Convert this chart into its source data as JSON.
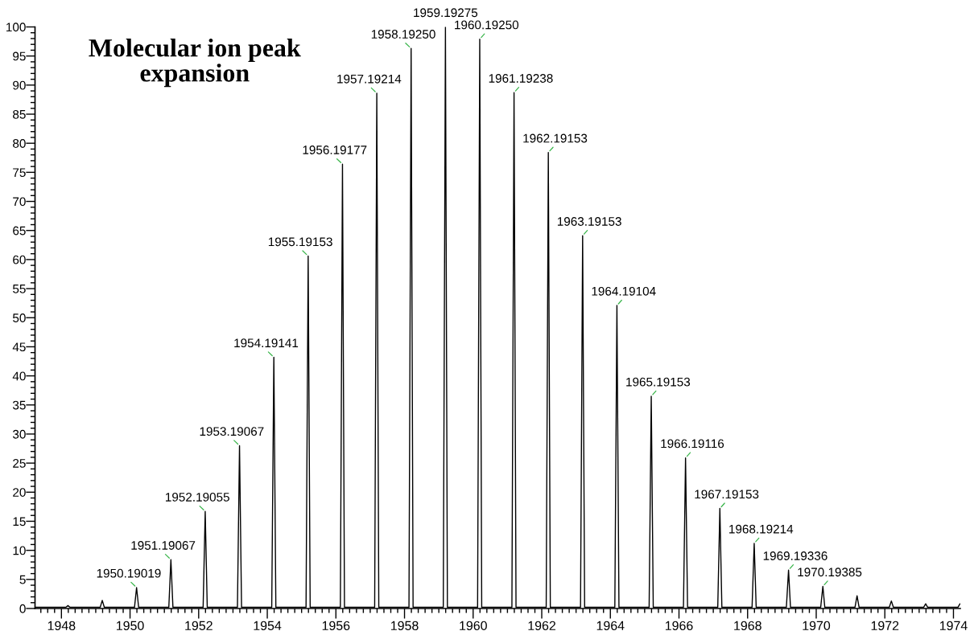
{
  "chart_data": {
    "type": "line",
    "title": "Molecular ion peak\nexpansion",
    "xlim": [
      1947.23,
      1974.2
    ],
    "ylim": [
      0,
      100
    ],
    "xticks": [
      {
        "value": 1947.4,
        "label": null
      },
      {
        "value": 1947.6,
        "label": null
      },
      {
        "value": 1947.8,
        "label": null
      },
      1948,
      {
        "value": 1948.2,
        "label": null
      },
      {
        "value": 1948.4,
        "label": null
      },
      {
        "value": 1948.6,
        "label": null
      },
      {
        "value": 1948.8,
        "label": null
      },
      {
        "value": 1949,
        "label": null
      },
      {
        "value": 1949.2,
        "label": null
      },
      {
        "value": 1949.4,
        "label": null
      },
      {
        "value": 1949.6,
        "label": null
      },
      {
        "value": 1949.8,
        "label": null
      },
      1950,
      {
        "value": 1950.2,
        "label": null
      },
      {
        "value": 1950.4,
        "label": null
      },
      {
        "value": 1950.6,
        "label": null
      },
      {
        "value": 1950.8,
        "label": null
      },
      {
        "value": 1951,
        "label": null
      },
      {
        "value": 1951.2,
        "label": null
      },
      {
        "value": 1951.4,
        "label": null
      },
      {
        "value": 1951.6,
        "label": null
      },
      {
        "value": 1951.8,
        "label": null
      },
      1952,
      {
        "value": 1952.2,
        "label": null
      },
      {
        "value": 1952.4,
        "label": null
      },
      {
        "value": 1952.6,
        "label": null
      },
      {
        "value": 1952.8,
        "label": null
      },
      {
        "value": 1953,
        "label": null
      },
      {
        "value": 1953.2,
        "label": null
      },
      {
        "value": 1953.4,
        "label": null
      },
      {
        "value": 1953.6,
        "label": null
      },
      {
        "value": 1953.8,
        "label": null
      },
      1954,
      {
        "value": 1954.2,
        "label": null
      },
      {
        "value": 1954.4,
        "label": null
      },
      {
        "value": 1954.6,
        "label": null
      },
      {
        "value": 1954.8,
        "label": null
      },
      {
        "value": 1955,
        "label": null
      },
      {
        "value": 1955.2,
        "label": null
      },
      {
        "value": 1955.4,
        "label": null
      },
      {
        "value": 1955.6,
        "label": null
      },
      {
        "value": 1955.8,
        "label": null
      },
      1956,
      {
        "value": 1956.2,
        "label": null
      },
      {
        "value": 1956.4,
        "label": null
      },
      {
        "value": 1956.6,
        "label": null
      },
      {
        "value": 1956.8,
        "label": null
      },
      {
        "value": 1957,
        "label": null
      },
      {
        "value": 1957.2,
        "label": null
      },
      {
        "value": 1957.4,
        "label": null
      },
      {
        "value": 1957.6,
        "label": null
      },
      {
        "value": 1957.8,
        "label": null
      },
      1958,
      {
        "value": 1958.2,
        "label": null
      },
      {
        "value": 1958.4,
        "label": null
      },
      {
        "value": 1958.6,
        "label": null
      },
      {
        "value": 1958.8,
        "label": null
      },
      {
        "value": 1959,
        "label": null
      },
      {
        "value": 1959.2,
        "label": null
      },
      {
        "value": 1959.4,
        "label": null
      },
      {
        "value": 1959.6,
        "label": null
      },
      {
        "value": 1959.8,
        "label": null
      },
      1960,
      {
        "value": 1960.2,
        "label": null
      },
      {
        "value": 1960.4,
        "label": null
      },
      {
        "value": 1960.6,
        "label": null
      },
      {
        "value": 1960.8,
        "label": null
      },
      {
        "value": 1961,
        "label": null
      },
      {
        "value": 1961.2,
        "label": null
      },
      {
        "value": 1961.4,
        "label": null
      },
      {
        "value": 1961.6,
        "label": null
      },
      {
        "value": 1961.8,
        "label": null
      },
      1962,
      {
        "value": 1962.2,
        "label": null
      },
      {
        "value": 1962.4,
        "label": null
      },
      {
        "value": 1962.6,
        "label": null
      },
      {
        "value": 1962.8,
        "label": null
      },
      {
        "value": 1963,
        "label": null
      },
      {
        "value": 1963.2,
        "label": null
      },
      {
        "value": 1963.4,
        "label": null
      },
      {
        "value": 1963.6,
        "label": null
      },
      {
        "value": 1963.8,
        "label": null
      },
      1964,
      {
        "value": 1964.2,
        "label": null
      },
      {
        "value": 1964.4,
        "label": null
      },
      {
        "value": 1964.6,
        "label": null
      },
      {
        "value": 1964.8,
        "label": null
      },
      {
        "value": 1965,
        "label": null
      },
      {
        "value": 1965.2,
        "label": null
      },
      {
        "value": 1965.4,
        "label": null
      },
      {
        "value": 1965.6,
        "label": null
      },
      {
        "value": 1965.8,
        "label": null
      },
      1966,
      {
        "value": 1966.2,
        "label": null
      },
      {
        "value": 1966.4,
        "label": null
      },
      {
        "value": 1966.6,
        "label": null
      },
      {
        "value": 1966.8,
        "label": null
      },
      {
        "value": 1967,
        "label": null
      },
      {
        "value": 1967.2,
        "label": null
      },
      {
        "value": 1967.4,
        "label": null
      },
      {
        "value": 1967.6,
        "label": null
      },
      {
        "value": 1967.8,
        "label": null
      },
      1968,
      {
        "value": 1968.2,
        "label": null
      },
      {
        "value": 1968.4,
        "label": null
      },
      {
        "value": 1968.6,
        "label": null
      },
      {
        "value": 1968.8,
        "label": null
      },
      {
        "value": 1969,
        "label": null
      },
      {
        "value": 1969.2,
        "label": null
      },
      {
        "value": 1969.4,
        "label": null
      },
      {
        "value": 1969.6,
        "label": null
      },
      {
        "value": 1969.8,
        "label": null
      },
      1970,
      {
        "value": 1970.2,
        "label": null
      },
      {
        "value": 1970.4,
        "label": null
      },
      {
        "value": 1970.6,
        "label": null
      },
      {
        "value": 1970.8,
        "label": null
      },
      {
        "value": 1971,
        "label": null
      },
      {
        "value": 1971.2,
        "label": null
      },
      {
        "value": 1971.4,
        "label": null
      },
      {
        "value": 1971.6,
        "label": null
      },
      {
        "value": 1971.8,
        "label": null
      },
      1972,
      {
        "value": 1972.2,
        "label": null
      },
      {
        "value": 1972.4,
        "label": null
      },
      {
        "value": 1972.6,
        "label": null
      },
      {
        "value": 1972.8,
        "label": null
      },
      {
        "value": 1973,
        "label": null
      },
      {
        "value": 1973.2,
        "label": null
      },
      {
        "value": 1973.4,
        "label": null
      },
      {
        "value": 1973.6,
        "label": null
      },
      {
        "value": 1973.8,
        "label": null
      },
      1974
    ],
    "yticks": [
      0,
      {
        "value": 1,
        "label": null
      },
      {
        "value": 2,
        "label": null
      },
      {
        "value": 3,
        "label": null
      },
      {
        "value": 4,
        "label": null
      },
      5,
      {
        "value": 6,
        "label": null
      },
      {
        "value": 7,
        "label": null
      },
      {
        "value": 8,
        "label": null
      },
      {
        "value": 9,
        "label": null
      },
      10,
      {
        "value": 11,
        "label": null
      },
      {
        "value": 12,
        "label": null
      },
      {
        "value": 13,
        "label": null
      },
      {
        "value": 14,
        "label": null
      },
      15,
      {
        "value": 16,
        "label": null
      },
      {
        "value": 17,
        "label": null
      },
      {
        "value": 18,
        "label": null
      },
      {
        "value": 19,
        "label": null
      },
      20,
      {
        "value": 21,
        "label": null
      },
      {
        "value": 22,
        "label": null
      },
      {
        "value": 23,
        "label": null
      },
      {
        "value": 24,
        "label": null
      },
      25,
      {
        "value": 26,
        "label": null
      },
      {
        "value": 27,
        "label": null
      },
      {
        "value": 28,
        "label": null
      },
      {
        "value": 29,
        "label": null
      },
      30,
      {
        "value": 31,
        "label": null
      },
      {
        "value": 32,
        "label": null
      },
      {
        "value": 33,
        "label": null
      },
      {
        "value": 34,
        "label": null
      },
      35,
      {
        "value": 36,
        "label": null
      },
      {
        "value": 37,
        "label": null
      },
      {
        "value": 38,
        "label": null
      },
      {
        "value": 39,
        "label": null
      },
      40,
      {
        "value": 41,
        "label": null
      },
      {
        "value": 42,
        "label": null
      },
      {
        "value": 43,
        "label": null
      },
      {
        "value": 44,
        "label": null
      },
      45,
      {
        "value": 46,
        "label": null
      },
      {
        "value": 47,
        "label": null
      },
      {
        "value": 48,
        "label": null
      },
      {
        "value": 49,
        "label": null
      },
      50,
      {
        "value": 51,
        "label": null
      },
      {
        "value": 52,
        "label": null
      },
      {
        "value": 53,
        "label": null
      },
      {
        "value": 54,
        "label": null
      },
      55,
      {
        "value": 56,
        "label": null
      },
      {
        "value": 57,
        "label": null
      },
      {
        "value": 58,
        "label": null
      },
      {
        "value": 59,
        "label": null
      },
      60,
      {
        "value": 61,
        "label": null
      },
      {
        "value": 62,
        "label": null
      },
      {
        "value": 63,
        "label": null
      },
      {
        "value": 64,
        "label": null
      },
      65,
      {
        "value": 66,
        "label": null
      },
      {
        "value": 67,
        "label": null
      },
      {
        "value": 68,
        "label": null
      },
      {
        "value": 69,
        "label": null
      },
      70,
      {
        "value": 71,
        "label": null
      },
      {
        "value": 72,
        "label": null
      },
      {
        "value": 73,
        "label": null
      },
      {
        "value": 74,
        "label": null
      },
      75,
      {
        "value": 76,
        "label": null
      },
      {
        "value": 77,
        "label": null
      },
      {
        "value": 78,
        "label": null
      },
      {
        "value": 79,
        "label": null
      },
      80,
      {
        "value": 81,
        "label": null
      },
      {
        "value": 82,
        "label": null
      },
      {
        "value": 83,
        "label": null
      },
      {
        "value": 84,
        "label": null
      },
      85,
      {
        "value": 86,
        "label": null
      },
      {
        "value": 87,
        "label": null
      },
      {
        "value": 88,
        "label": null
      },
      {
        "value": 89,
        "label": null
      },
      90,
      {
        "value": 91,
        "label": null
      },
      {
        "value": 92,
        "label": null
      },
      {
        "value": 93,
        "label": null
      },
      {
        "value": 94,
        "label": null
      },
      95,
      {
        "value": 96,
        "label": null
      },
      {
        "value": 97,
        "label": null
      },
      {
        "value": 98,
        "label": null
      },
      {
        "value": 99,
        "label": null
      },
      100
    ],
    "series": [
      {
        "color": "#000000",
        "x": [
          1947.25,
          1948.13,
          1948.19,
          1948.25,
          1949.13,
          1949.19,
          1949.25,
          1950.13,
          1950.19019,
          1950.25,
          1951.13,
          1951.19067,
          1951.25,
          1952.13,
          1952.19055,
          1952.25,
          1953.13,
          1953.19067,
          1953.25,
          1954.13,
          1954.19141,
          1954.25,
          1955.13,
          1955.19153,
          1955.25,
          1956.13,
          1956.19177,
          1956.25,
          1957.13,
          1957.19214,
          1957.25,
          1958.13,
          1958.1925,
          1958.25,
          1959.13,
          1959.19275,
          1959.25,
          1960.13,
          1960.1925,
          1960.25,
          1961.13,
          1961.19238,
          1961.25,
          1962.13,
          1962.19153,
          1962.25,
          1963.13,
          1963.19153,
          1963.25,
          1964.13,
          1964.19104,
          1964.25,
          1965.13,
          1965.19153,
          1965.25,
          1966.13,
          1966.19116,
          1966.25,
          1967.13,
          1967.19153,
          1967.25,
          1968.13,
          1968.19214,
          1968.25,
          1969.13,
          1969.19336,
          1969.25,
          1970.13,
          1970.19385,
          1970.25,
          1971.13,
          1971.19,
          1971.25,
          1972.13,
          1972.19,
          1972.25,
          1973.13,
          1973.19,
          1973.25,
          1974.13,
          1974.19
        ],
        "values": [
          0.2,
          0.2,
          0.5,
          0.2,
          0.2,
          1.4,
          0.2,
          0.2,
          3.6,
          0.2,
          0.2,
          8.4,
          0.2,
          0.2,
          16.7,
          0.2,
          0.2,
          28.0,
          0.2,
          0.2,
          43.2,
          0.2,
          0.2,
          60.6,
          0.2,
          0.2,
          76.4,
          0.2,
          0.2,
          88.6,
          0.2,
          0.2,
          96.3,
          0.2,
          0.2,
          100,
          0.2,
          0.2,
          97.9,
          0.2,
          0.2,
          88.7,
          0.2,
          0.2,
          78.4,
          0.2,
          0.2,
          64.1,
          0.2,
          0.2,
          52.1,
          0.2,
          0.2,
          36.5,
          0.2,
          0.2,
          25.9,
          0.2,
          0.2,
          17.2,
          0.2,
          0.2,
          11.2,
          0.2,
          0.2,
          6.6,
          0.2,
          0.2,
          3.8,
          0.2,
          0.2,
          2.2,
          0.2,
          0.2,
          1.3,
          0.2,
          0.2,
          0.8,
          0.2,
          0.2,
          0.8
        ]
      }
    ],
    "annotations": [
      {
        "text": "1950.19019",
        "x": 1950.19019,
        "y": 3.6
      },
      {
        "text": "1951.19067",
        "x": 1951.19067,
        "y": 8.4
      },
      {
        "text": "1952.19055",
        "x": 1952.19055,
        "y": 16.7
      },
      {
        "text": "1953.19067",
        "x": 1953.19067,
        "y": 28.0
      },
      {
        "text": "1954.19141",
        "x": 1954.19141,
        "y": 43.2
      },
      {
        "text": "1955.19153",
        "x": 1955.19153,
        "y": 60.6
      },
      {
        "text": "1956.19177",
        "x": 1956.19177,
        "y": 76.4
      },
      {
        "text": "1957.19214",
        "x": 1957.19214,
        "y": 88.6
      },
      {
        "text": "1958.19250",
        "x": 1958.1925,
        "y": 96.3
      },
      {
        "text": "1959.19275",
        "x": 1959.19275,
        "y": 100
      },
      {
        "text": "1960.19250",
        "x": 1960.1925,
        "y": 97.9
      },
      {
        "text": "1961.19238",
        "x": 1961.19238,
        "y": 88.7
      },
      {
        "text": "1962.19153",
        "x": 1962.19153,
        "y": 78.4
      },
      {
        "text": "1963.19153",
        "x": 1963.19153,
        "y": 64.1
      },
      {
        "text": "1964.19104",
        "x": 1964.19104,
        "y": 52.1
      },
      {
        "text": "1965.19153",
        "x": 1965.19153,
        "y": 36.5
      },
      {
        "text": "1966.19116",
        "x": 1966.19116,
        "y": 25.9
      },
      {
        "text": "1967.19153",
        "x": 1967.19153,
        "y": 17.2
      },
      {
        "text": "1968.19214",
        "x": 1968.19214,
        "y": 11.2
      },
      {
        "text": "1969.19336",
        "x": 1969.19336,
        "y": 6.6
      },
      {
        "text": "1970.19385",
        "x": 1970.19385,
        "y": 3.8
      }
    ]
  }
}
